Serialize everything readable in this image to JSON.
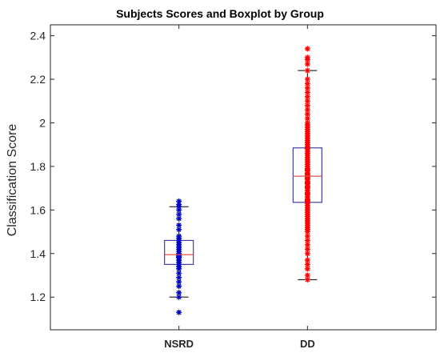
{
  "chart_data": {
    "type": "boxplot",
    "title": "Subjects Scores and Boxplot by Group",
    "xlabel": "",
    "ylabel": "Classification Score",
    "ylim": [
      1.05,
      2.45
    ],
    "yticks": [
      1.2,
      1.4,
      1.6,
      1.8,
      2,
      2.2,
      2.4
    ],
    "ytick_labels": [
      "1.2",
      "1.4",
      "1.6",
      "1.8",
      "2",
      "2.2",
      "2.4"
    ],
    "categories": [
      "NSRD",
      "DD"
    ],
    "grid": false,
    "colors": {
      "box": "#4040a0",
      "median": "#e05050",
      "whisker": "#000000",
      "axis": "#262626"
    },
    "groups": [
      {
        "name": "NSRD",
        "point_color": "#0000cc",
        "whisker_low": 1.2,
        "q1": 1.35,
        "median": 1.395,
        "q3": 1.46,
        "whisker_high": 1.615,
        "points": [
          1.13,
          1.2,
          1.22,
          1.25,
          1.27,
          1.29,
          1.31,
          1.33,
          1.34,
          1.35,
          1.36,
          1.37,
          1.38,
          1.385,
          1.39,
          1.4,
          1.41,
          1.42,
          1.43,
          1.44,
          1.45,
          1.46,
          1.47,
          1.48,
          1.51,
          1.53,
          1.56,
          1.58,
          1.6,
          1.615,
          1.625,
          1.64
        ]
      },
      {
        "name": "DD",
        "point_color": "#ff0000",
        "whisker_low": 1.28,
        "q1": 1.635,
        "median": 1.755,
        "q3": 1.885,
        "whisker_high": 2.24,
        "points": [
          1.28,
          1.3,
          1.33,
          1.35,
          1.37,
          1.4,
          1.42,
          1.44,
          1.46,
          1.48,
          1.5,
          1.51,
          1.52,
          1.53,
          1.54,
          1.55,
          1.56,
          1.57,
          1.58,
          1.59,
          1.6,
          1.61,
          1.62,
          1.63,
          1.64,
          1.645,
          1.65,
          1.66,
          1.67,
          1.675,
          1.68,
          1.69,
          1.7,
          1.705,
          1.71,
          1.72,
          1.725,
          1.73,
          1.74,
          1.745,
          1.75,
          1.76,
          1.765,
          1.77,
          1.78,
          1.785,
          1.79,
          1.8,
          1.81,
          1.82,
          1.83,
          1.84,
          1.85,
          1.86,
          1.87,
          1.88,
          1.89,
          1.9,
          1.91,
          1.92,
          1.93,
          1.94,
          1.95,
          1.96,
          1.97,
          1.98,
          1.99,
          2.0,
          2.02,
          2.04,
          2.06,
          2.08,
          2.1,
          2.12,
          2.14,
          2.16,
          2.18,
          2.2,
          2.24,
          2.27,
          2.29,
          2.3,
          2.34
        ]
      }
    ]
  }
}
